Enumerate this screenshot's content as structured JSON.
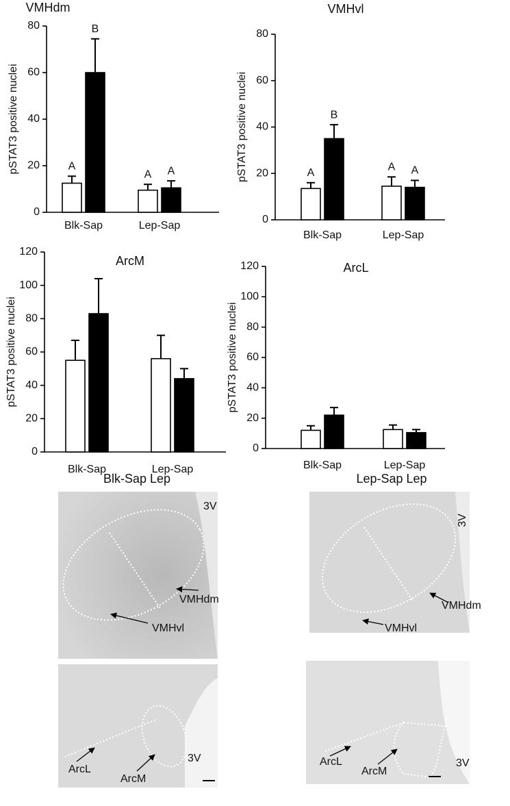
{
  "chart_data": [
    {
      "type": "bar",
      "title": "VMHdm",
      "y_label": "pSTAT3 positive nuclei",
      "categories": [
        "Blk-Sap",
        "Lep-Sap"
      ],
      "series": [
        {
          "color": "#ffffff",
          "values": [
            12.5,
            9.5
          ],
          "errors": [
            3,
            2.5
          ],
          "group_labels": [
            "A",
            "A"
          ]
        },
        {
          "color": "#000000",
          "values": [
            60,
            10.5
          ],
          "errors": [
            14.5,
            3
          ],
          "group_labels": [
            "B",
            "A"
          ]
        }
      ],
      "ylim": [
        0,
        80
      ],
      "yticks": [
        0,
        20,
        40,
        60,
        80
      ]
    },
    {
      "type": "bar",
      "title": "VMHvl",
      "y_label": "pSTAT3 positive nuclei",
      "categories": [
        "Blk-Sap",
        "Lep-Sap"
      ],
      "series": [
        {
          "color": "#ffffff",
          "values": [
            13.5,
            14.5
          ],
          "errors": [
            2.5,
            4
          ],
          "group_labels": [
            "A",
            "A"
          ]
        },
        {
          "color": "#000000",
          "values": [
            35,
            14
          ],
          "errors": [
            6,
            3
          ],
          "group_labels": [
            "B",
            "A"
          ]
        }
      ],
      "ylim": [
        0,
        80
      ],
      "yticks": [
        0,
        20,
        40,
        60,
        80
      ]
    },
    {
      "type": "bar",
      "title": "ArcM",
      "y_label": "pSTAT3 positive nuclei",
      "categories": [
        "Blk-Sap",
        "Lep-Sap"
      ],
      "series": [
        {
          "color": "#ffffff",
          "values": [
            55,
            56
          ],
          "errors": [
            12,
            14
          ]
        },
        {
          "color": "#000000",
          "values": [
            83,
            44
          ],
          "errors": [
            21,
            6
          ]
        }
      ],
      "ylim": [
        0,
        120
      ],
      "yticks": [
        0,
        20,
        40,
        60,
        80,
        100,
        120
      ]
    },
    {
      "type": "bar",
      "title": "ArcL",
      "y_label": "pSTAT3 positive nuclei",
      "categories": [
        "Blk-Sap",
        "Lep-Sap"
      ],
      "series": [
        {
          "color": "#ffffff",
          "values": [
            12,
            12.5
          ],
          "errors": [
            3,
            3
          ]
        },
        {
          "color": "#000000",
          "values": [
            22,
            10.5
          ],
          "errors": [
            5,
            2
          ]
        }
      ],
      "ylim": [
        0,
        120
      ],
      "yticks": [
        0,
        20,
        40,
        60,
        80,
        100,
        120
      ]
    }
  ],
  "micrographs": [
    {
      "title": "Blk-Sap Lep",
      "panels": [
        {
          "labels": [
            "3V",
            "VMHdm",
            "VMHvl"
          ]
        },
        {
          "labels": [
            "ArcL",
            "ArcM",
            "3V"
          ]
        }
      ]
    },
    {
      "title": "Lep-Sap Lep",
      "panels": [
        {
          "labels": [
            "3V",
            "VMHdm",
            "VMHvl"
          ]
        },
        {
          "labels": [
            "ArcL",
            "ArcM",
            "3V"
          ]
        }
      ]
    }
  ]
}
